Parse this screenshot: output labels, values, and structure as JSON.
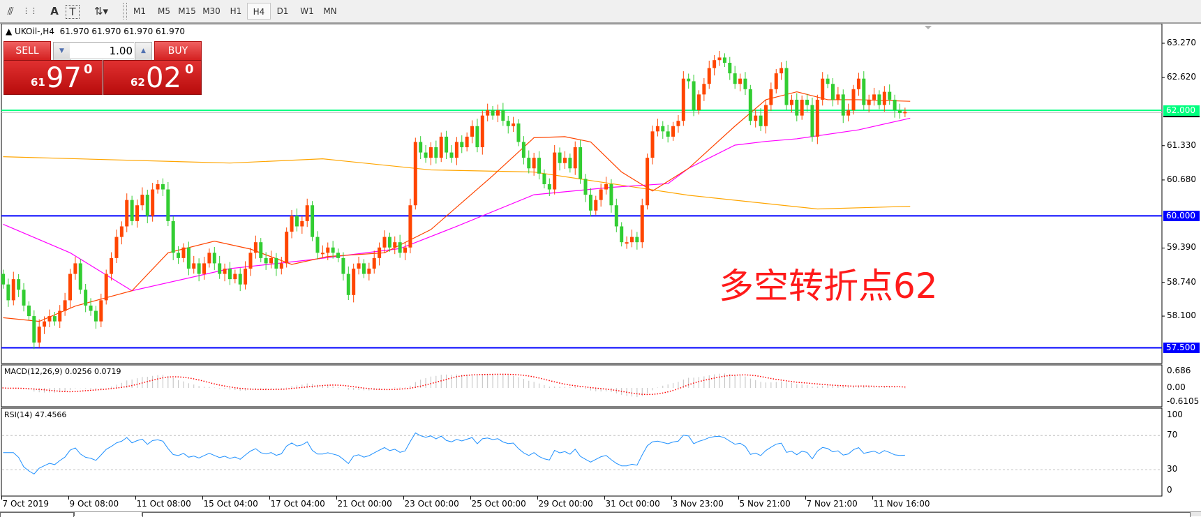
{
  "toolbar": {
    "tools": [
      {
        "icon": "fibonacci-expansion-icon",
        "glyph": "⫻"
      },
      {
        "icon": "fibonacci-fan-icon",
        "glyph": "⋮⋮"
      },
      {
        "icon": "text-icon",
        "glyph": "A"
      },
      {
        "icon": "text-label-icon",
        "glyph": "T"
      },
      {
        "icon": "arrows-dropdown-icon",
        "glyph": "⇅▾"
      }
    ],
    "timeframes": [
      "M1",
      "M5",
      "M15",
      "M30",
      "H1",
      "H4",
      "D1",
      "W1",
      "MN"
    ],
    "selected_timeframe": "H4"
  },
  "chart_header": {
    "symbol": "UKOil-,H4",
    "ohlc": "61.970 61.970 61.970 61.970"
  },
  "trade_panel": {
    "sell_label": "SELL",
    "buy_label": "BUY",
    "lot": "1.00",
    "sell_price": {
      "big_figure": "61",
      "pips": "97",
      "fraction": "0"
    },
    "buy_price": {
      "big_figure": "62",
      "pips": "02",
      "fraction": "0"
    }
  },
  "annotation": "多空转折点62",
  "colors": {
    "bull_candle": "#ff4500",
    "bear_candle": "#32cd32",
    "level_green": "#00ff7f",
    "level_blue": "#0000ff",
    "rsi": "#1e90ff",
    "macd_signal": "#ff0000",
    "macd_hist": "#c0c0c0"
  },
  "chart_data": {
    "type": "candlestick",
    "symbol": "UKOil-",
    "timeframe": "H4",
    "price_axis_ticks": [
      "63.270",
      "62.620",
      "61.330",
      "60.680",
      "59.390",
      "58.740",
      "58.100"
    ],
    "ylim": [
      57.2,
      63.63
    ],
    "horizontal_levels": [
      {
        "price": 62.0,
        "label": "62.000",
        "color": "#00ff7f"
      },
      {
        "price": 60.0,
        "label": "60.000",
        "color": "#0000ff"
      },
      {
        "price": 57.5,
        "label": "57.500",
        "color": "#0000ff"
      }
    ],
    "bid_line": 61.97,
    "time_labels": [
      "7 Oct 2019",
      "9 Oct 08:00",
      "11 Oct 08:00",
      "15 Oct 04:00",
      "17 Oct 04:00",
      "21 Oct 00:00",
      "23 Oct 00:00",
      "25 Oct 00:00",
      "29 Oct 00:00",
      "31 Oct 00:00",
      "3 Nov 23:00",
      "5 Nov 21:00",
      "7 Nov 21:00",
      "11 Nov 16:00"
    ],
    "closes": [
      58.7,
      58.4,
      58.8,
      58.6,
      58.3,
      58.1,
      57.6,
      57.9,
      58.0,
      58.1,
      58.0,
      58.2,
      58.4,
      58.9,
      59.1,
      58.6,
      58.3,
      58.2,
      58.0,
      58.4,
      58.9,
      59.2,
      59.6,
      59.8,
      60.3,
      59.9,
      60.2,
      60.4,
      60.0,
      60.5,
      60.6,
      60.5,
      59.9,
      59.3,
      59.2,
      59.4,
      59.0,
      59.1,
      58.9,
      59.1,
      59.3,
      59.1,
      58.9,
      59.0,
      58.8,
      58.9,
      58.7,
      59.0,
      59.3,
      59.5,
      59.2,
      59.1,
      59.2,
      59.0,
      59.1,
      59.7,
      60.0,
      59.8,
      59.9,
      60.2,
      59.6,
      59.3,
      59.3,
      59.4,
      59.3,
      59.2,
      58.9,
      58.5,
      59.0,
      59.1,
      58.9,
      59.0,
      59.2,
      59.4,
      59.6,
      59.4,
      59.5,
      59.3,
      59.4,
      60.2,
      61.4,
      61.2,
      61.1,
      61.3,
      61.1,
      61.5,
      61.2,
      61.1,
      61.4,
      61.3,
      61.5,
      61.7,
      61.3,
      61.9,
      62.0,
      61.9,
      62.0,
      61.8,
      61.7,
      61.75,
      61.4,
      61.1,
      60.9,
      61.1,
      60.8,
      60.6,
      60.5,
      61.2,
      61.0,
      61.1,
      60.9,
      61.3,
      60.7,
      60.4,
      60.1,
      60.3,
      60.5,
      60.6,
      60.2,
      59.8,
      59.5,
      59.5,
      59.6,
      59.5,
      60.2,
      61.1,
      61.6,
      61.7,
      61.6,
      61.5,
      61.7,
      61.8,
      62.6,
      62.55,
      62.0,
      62.3,
      62.5,
      62.8,
      62.95,
      63.0,
      62.9,
      62.7,
      62.5,
      62.6,
      62.4,
      61.8,
      61.9,
      61.7,
      62.1,
      62.4,
      62.7,
      62.8,
      62.1,
      62.2,
      61.9,
      62.2,
      62.1,
      61.5,
      62.2,
      62.6,
      62.5,
      62.2,
      62.3,
      61.9,
      62.0,
      62.4,
      62.6,
      62.1,
      62.2,
      62.3,
      62.1,
      62.35,
      62.2,
      62.0,
      61.95,
      61.97
    ],
    "first_open": 58.9,
    "moving_averages": [
      {
        "color": "#ffa500",
        "points": [
          [
            0,
            61.12
          ],
          [
            44,
            61.0
          ],
          [
            62,
            61.08
          ],
          [
            83,
            60.87
          ],
          [
            103,
            60.83
          ],
          [
            118,
            60.61
          ],
          [
            133,
            60.39
          ],
          [
            158,
            60.13
          ],
          [
            176,
            60.18
          ]
        ]
      },
      {
        "color": "#ff00ff",
        "points": [
          [
            0,
            59.84
          ],
          [
            13,
            59.3
          ],
          [
            25,
            58.58
          ],
          [
            44,
            59.0
          ],
          [
            59,
            59.16
          ],
          [
            77,
            59.38
          ],
          [
            88,
            59.8
          ],
          [
            103,
            60.4
          ],
          [
            118,
            60.54
          ],
          [
            129,
            60.61
          ],
          [
            133,
            60.9
          ],
          [
            142,
            61.34
          ],
          [
            148,
            61.41
          ],
          [
            154,
            61.46
          ],
          [
            166,
            61.63
          ],
          [
            176,
            61.85
          ]
        ]
      },
      {
        "color": "#ff4500",
        "points": [
          [
            0,
            58.07
          ],
          [
            7,
            58.0
          ],
          [
            14,
            58.29
          ],
          [
            25,
            58.58
          ],
          [
            32,
            59.3
          ],
          [
            41,
            59.52
          ],
          [
            48,
            59.37
          ],
          [
            56,
            59.08
          ],
          [
            63,
            59.23
          ],
          [
            74,
            59.3
          ],
          [
            83,
            59.74
          ],
          [
            95,
            60.76
          ],
          [
            103,
            61.48
          ],
          [
            109,
            61.5
          ],
          [
            114,
            61.4
          ],
          [
            120,
            60.83
          ],
          [
            126,
            60.47
          ],
          [
            133,
            60.9
          ],
          [
            142,
            61.7
          ],
          [
            148,
            62.2
          ],
          [
            154,
            62.35
          ],
          [
            160,
            62.2
          ],
          [
            166,
            62.2
          ],
          [
            176,
            62.17
          ]
        ]
      }
    ],
    "macd": {
      "label": "MACD(12,26,9) 0.0256 0.0719",
      "ticks": [
        "0.686",
        "0.00",
        "-0.6105"
      ],
      "ylim": [
        -0.6105,
        0.686
      ]
    },
    "rsi": {
      "label": "RSI(14) 47.4566",
      "ticks": [
        "100",
        "70",
        "30",
        "0"
      ],
      "levels": [
        70,
        30
      ],
      "ylim": [
        0,
        100
      ]
    }
  }
}
